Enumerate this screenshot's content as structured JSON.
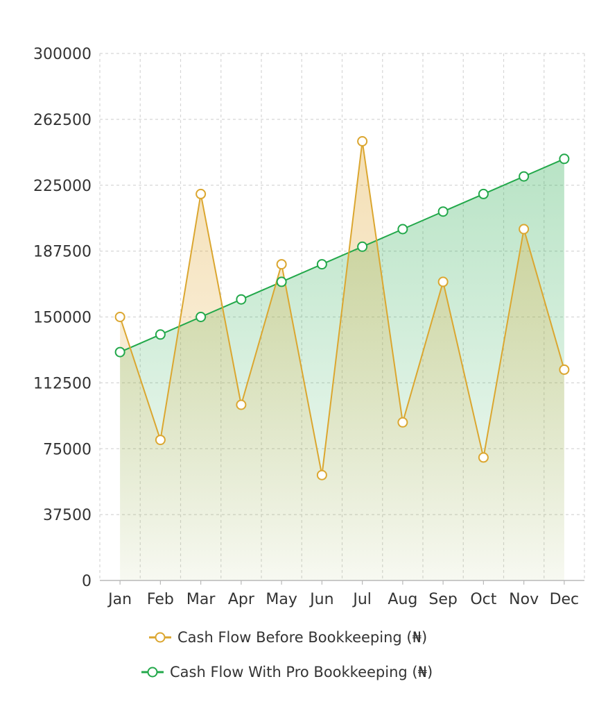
{
  "chart_data": {
    "type": "area",
    "categories": [
      "Jan",
      "Feb",
      "Mar",
      "Apr",
      "May",
      "Jun",
      "Jul",
      "Aug",
      "Sep",
      "Oct",
      "Nov",
      "Dec"
    ],
    "series": [
      {
        "name": "Cash Flow Before Bookkeeping (₦)",
        "color": "#dba62f",
        "values": [
          150000,
          80000,
          220000,
          100000,
          180000,
          60000,
          250000,
          90000,
          170000,
          70000,
          200000,
          120000
        ]
      },
      {
        "name": "Cash Flow With Pro Bookkeeping (₦)",
        "color": "#22a84a",
        "values": [
          130000,
          140000,
          150000,
          160000,
          170000,
          180000,
          190000,
          200000,
          210000,
          220000,
          230000,
          240000
        ]
      }
    ],
    "ylim": [
      0,
      300000
    ],
    "yticks": [
      "0",
      "37500",
      "75000",
      "112500",
      "150000",
      "187500",
      "225000",
      "262500",
      "300000"
    ],
    "grid": true,
    "legend_position": "bottom",
    "title": "",
    "xlabel": "",
    "ylabel": ""
  }
}
